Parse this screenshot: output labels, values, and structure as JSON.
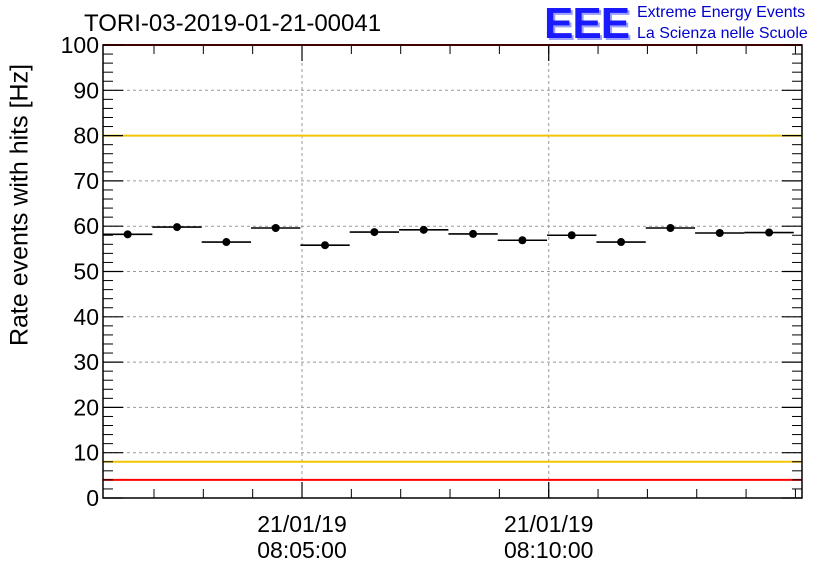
{
  "title": "TORI-03-2019-01-21-00041",
  "logo": {
    "mark": "EEE",
    "line1": "Extreme Energy Events",
    "line2": "La Scienza nelle Scuole",
    "color": "#0000cc"
  },
  "chart_data": {
    "type": "scatter",
    "title": "TORI-03-2019-01-21-00041",
    "ylabel": "Rate events with hits [Hz]",
    "xlabel": "",
    "ylim": [
      0,
      100
    ],
    "yticks": [
      0,
      10,
      20,
      30,
      40,
      50,
      60,
      70,
      80,
      90,
      100
    ],
    "xlim_seconds": [
      0,
      850
    ],
    "xticks": [
      {
        "t": 242,
        "date": "21/01/19",
        "time": "08:05:00"
      },
      {
        "t": 542,
        "date": "21/01/19",
        "time": "08:10:00"
      }
    ],
    "grid": true,
    "reference_lines": [
      {
        "y": 100,
        "color": "#ff0000"
      },
      {
        "y": 80,
        "color": "#f2c500"
      },
      {
        "y": 8,
        "color": "#f2c500"
      },
      {
        "y": 4,
        "color": "#ff0000"
      }
    ],
    "bin_width_seconds": 60,
    "series": [
      {
        "name": "Rate events with hits",
        "x": [
          30,
          90,
          150,
          210,
          270,
          330,
          390,
          450,
          510,
          570,
          630,
          690,
          750,
          810
        ],
        "y": [
          58.2,
          59.8,
          56.5,
          59.6,
          55.8,
          58.7,
          59.2,
          58.3,
          56.9,
          58.0,
          56.5,
          59.6,
          58.5,
          58.6
        ]
      }
    ]
  }
}
